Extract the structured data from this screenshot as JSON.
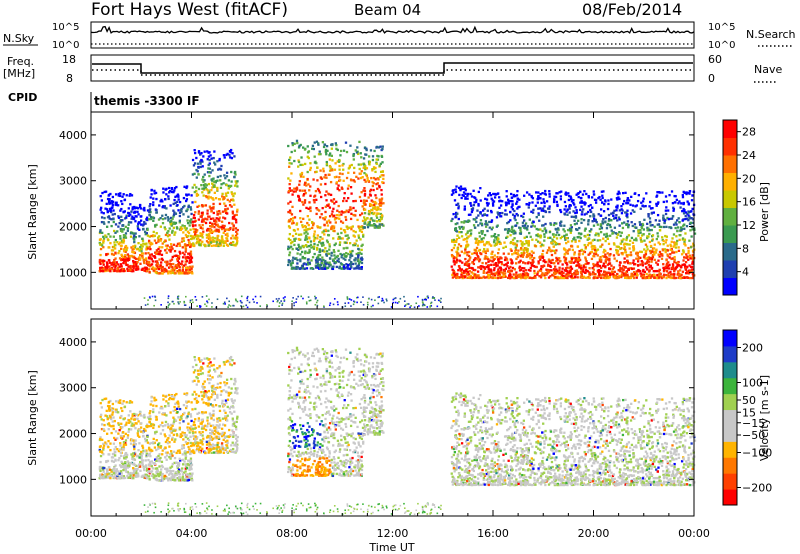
{
  "header": {
    "title": "Fort Hays West (fitACF)",
    "beam": "Beam 04",
    "date": "08/Feb/2014"
  },
  "status_panels": {
    "nsky_label": "N.Sky",
    "nsearch_label": "N.Search",
    "nsky_ticks": [
      "10^5",
      "10^0"
    ],
    "freq_label_line1": "Freq.",
    "freq_label_line2": "[MHz]",
    "freq_ticks": [
      "18",
      "8"
    ],
    "nave_label": "Nave",
    "nave_ticks": [
      "60",
      "0"
    ],
    "cpid_label": "CPID",
    "cpid_text": "themis -3300 IF"
  },
  "colors": {
    "power_scale": [
      "#0000ff",
      "#1f3fb0",
      "#2a6a8a",
      "#3a9a50",
      "#60b040",
      "#c8c800",
      "#ffb000",
      "#ff7000",
      "#ff3000",
      "#ff0000"
    ],
    "velocity_scale": [
      "#0000ff",
      "#1e3cc8",
      "#1e8c8c",
      "#3cb43c",
      "#a0d050",
      "#c8c8c8",
      "#c8c8c8",
      "#ffb400",
      "#ff7800",
      "#ff4000",
      "#ff0000"
    ]
  },
  "chart_data": [
    {
      "type": "heatmap",
      "name": "power",
      "ylabel": "Slant Range [km]",
      "ylim": [
        200,
        4500
      ],
      "yticks": [
        1000,
        2000,
        3000,
        4000
      ],
      "xlim": [
        0,
        24
      ],
      "colorbar_label": "Power [dB]",
      "colorbar_ticks": [
        4,
        8,
        12,
        16,
        20,
        24,
        28
      ],
      "colorbar_range": [
        0,
        30
      ],
      "echo_bands": [
        {
          "t0": 0.3,
          "t1": 1.6,
          "r0": 1050,
          "r1": 2800,
          "core": 1200
        },
        {
          "t0": 1.6,
          "t1": 2.2,
          "r0": 1050,
          "r1": 2500,
          "core": 1150
        },
        {
          "t0": 2.2,
          "t1": 4.0,
          "r0": 1000,
          "r1": 2900,
          "core": 1350
        },
        {
          "t0": 4.0,
          "t1": 5.8,
          "r0": 1600,
          "r1": 3700,
          "core": 2200
        },
        {
          "t0": 7.8,
          "t1": 10.8,
          "r0": 1100,
          "r1": 3900,
          "core": 2600
        },
        {
          "t0": 10.8,
          "t1": 11.6,
          "r0": 2000,
          "r1": 3800,
          "core": 2800
        },
        {
          "t0": 14.3,
          "t1": 15.5,
          "r0": 900,
          "r1": 2900,
          "core": 1150
        },
        {
          "t0": 15.5,
          "t1": 24.0,
          "r0": 900,
          "r1": 2800,
          "core": 1150
        }
      ]
    },
    {
      "type": "heatmap",
      "name": "velocity",
      "ylabel": "Slant Range [km]",
      "ylim": [
        200,
        4500
      ],
      "yticks": [
        1000,
        2000,
        3000,
        4000
      ],
      "xlim": [
        0,
        24
      ],
      "xticks": [
        "00:00",
        "04:00",
        "08:00",
        "12:00",
        "16:00",
        "20:00",
        "00:00"
      ],
      "xlabel": "Time UT",
      "colorbar_label": "Velocity [m s-1]",
      "colorbar_ticks": [
        200,
        100,
        50,
        15,
        -15,
        -50,
        -100,
        -200
      ],
      "colorbar_range": [
        -250,
        250
      ]
    }
  ]
}
